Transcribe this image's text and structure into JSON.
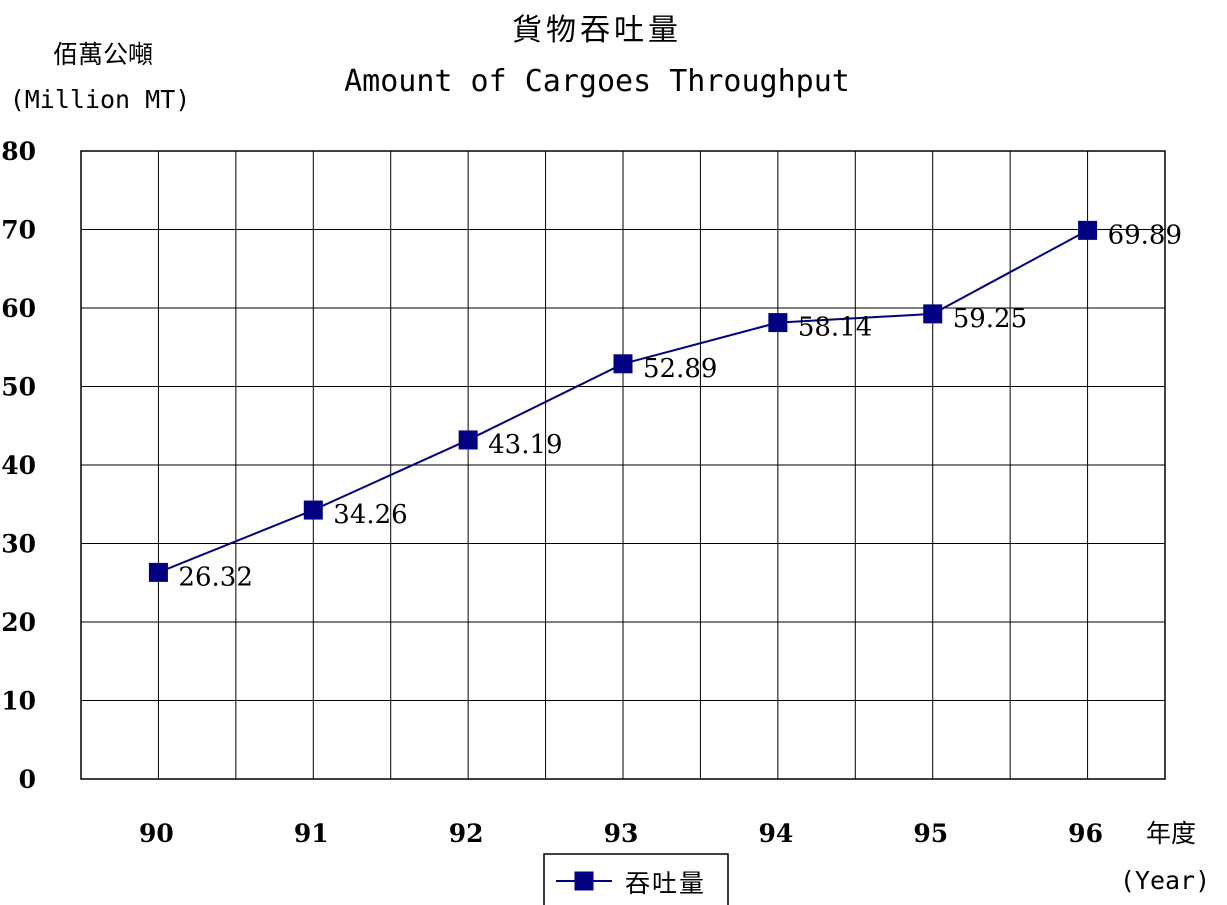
{
  "chart_data": {
    "type": "line",
    "title": "貨物吞吐量",
    "subtitle": "Amount of Cargoes Throughput",
    "ylabel": "佰萬公噸",
    "ylabel_unit": "(Million MT)",
    "xlabel": "年度",
    "xlabel_unit": "(Year)",
    "categories": [
      "90",
      "91",
      "92",
      "93",
      "94",
      "95",
      "96"
    ],
    "series": [
      {
        "name": "吞吐量",
        "values": [
          26.32,
          34.26,
          43.19,
          52.89,
          58.14,
          59.25,
          69.89
        ],
        "labels": [
          "26.32",
          "34.26",
          "43.19",
          "52.89",
          "58.14",
          "59.25",
          "69.89"
        ],
        "color": "#000080",
        "marker": "square"
      }
    ],
    "ylim": [
      0,
      80
    ],
    "yticks": [
      0,
      10,
      20,
      30,
      40,
      50,
      60,
      70,
      80
    ],
    "grid": true,
    "legend_position": "bottom-center"
  }
}
